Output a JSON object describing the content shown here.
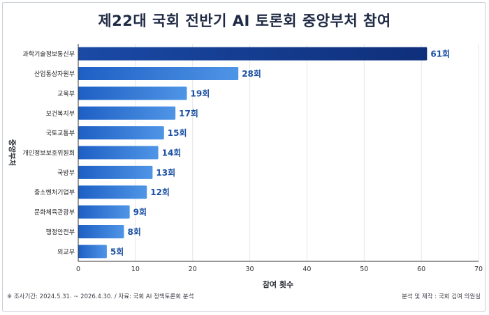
{
  "chart_data": {
    "type": "bar",
    "orientation": "horizontal",
    "title": "제22대 국회 전반기 AI 토론회 중앙부처 참여",
    "xlabel": "참여 횟수",
    "ylabel": "중앙부처",
    "xlim": [
      0,
      70
    ],
    "xticks": [
      0,
      10,
      20,
      30,
      40,
      50,
      60,
      70
    ],
    "grid": true,
    "categories": [
      "과학기술정보통신부",
      "산업통상자원부",
      "교육부",
      "보건복지부",
      "국토교통부",
      "개인정보보호위원회",
      "국방부",
      "중소벤처기업부",
      "문화체육관광부",
      "행정안전부",
      "외교부"
    ],
    "values": [
      61,
      28,
      19,
      17,
      15,
      14,
      13,
      12,
      9,
      8,
      5
    ],
    "data_labels": [
      "61회",
      "28회",
      "19회",
      "17회",
      "15회",
      "14회",
      "13회",
      "12회",
      "9회",
      "8회",
      "5회"
    ],
    "colors": {
      "top_bar": "#0f2f7a",
      "bar_start": "#1d5fc4",
      "bar_end": "#4f95e6",
      "label": "#1a4fa3"
    }
  },
  "footer": {
    "source": "※ 조사기간: 2024.5.31. ~ 2026.4.30. / 자료: 국회 AI 정책토론회 분석",
    "credit": "분석 및 제작 : 국회 김여 의원실"
  }
}
